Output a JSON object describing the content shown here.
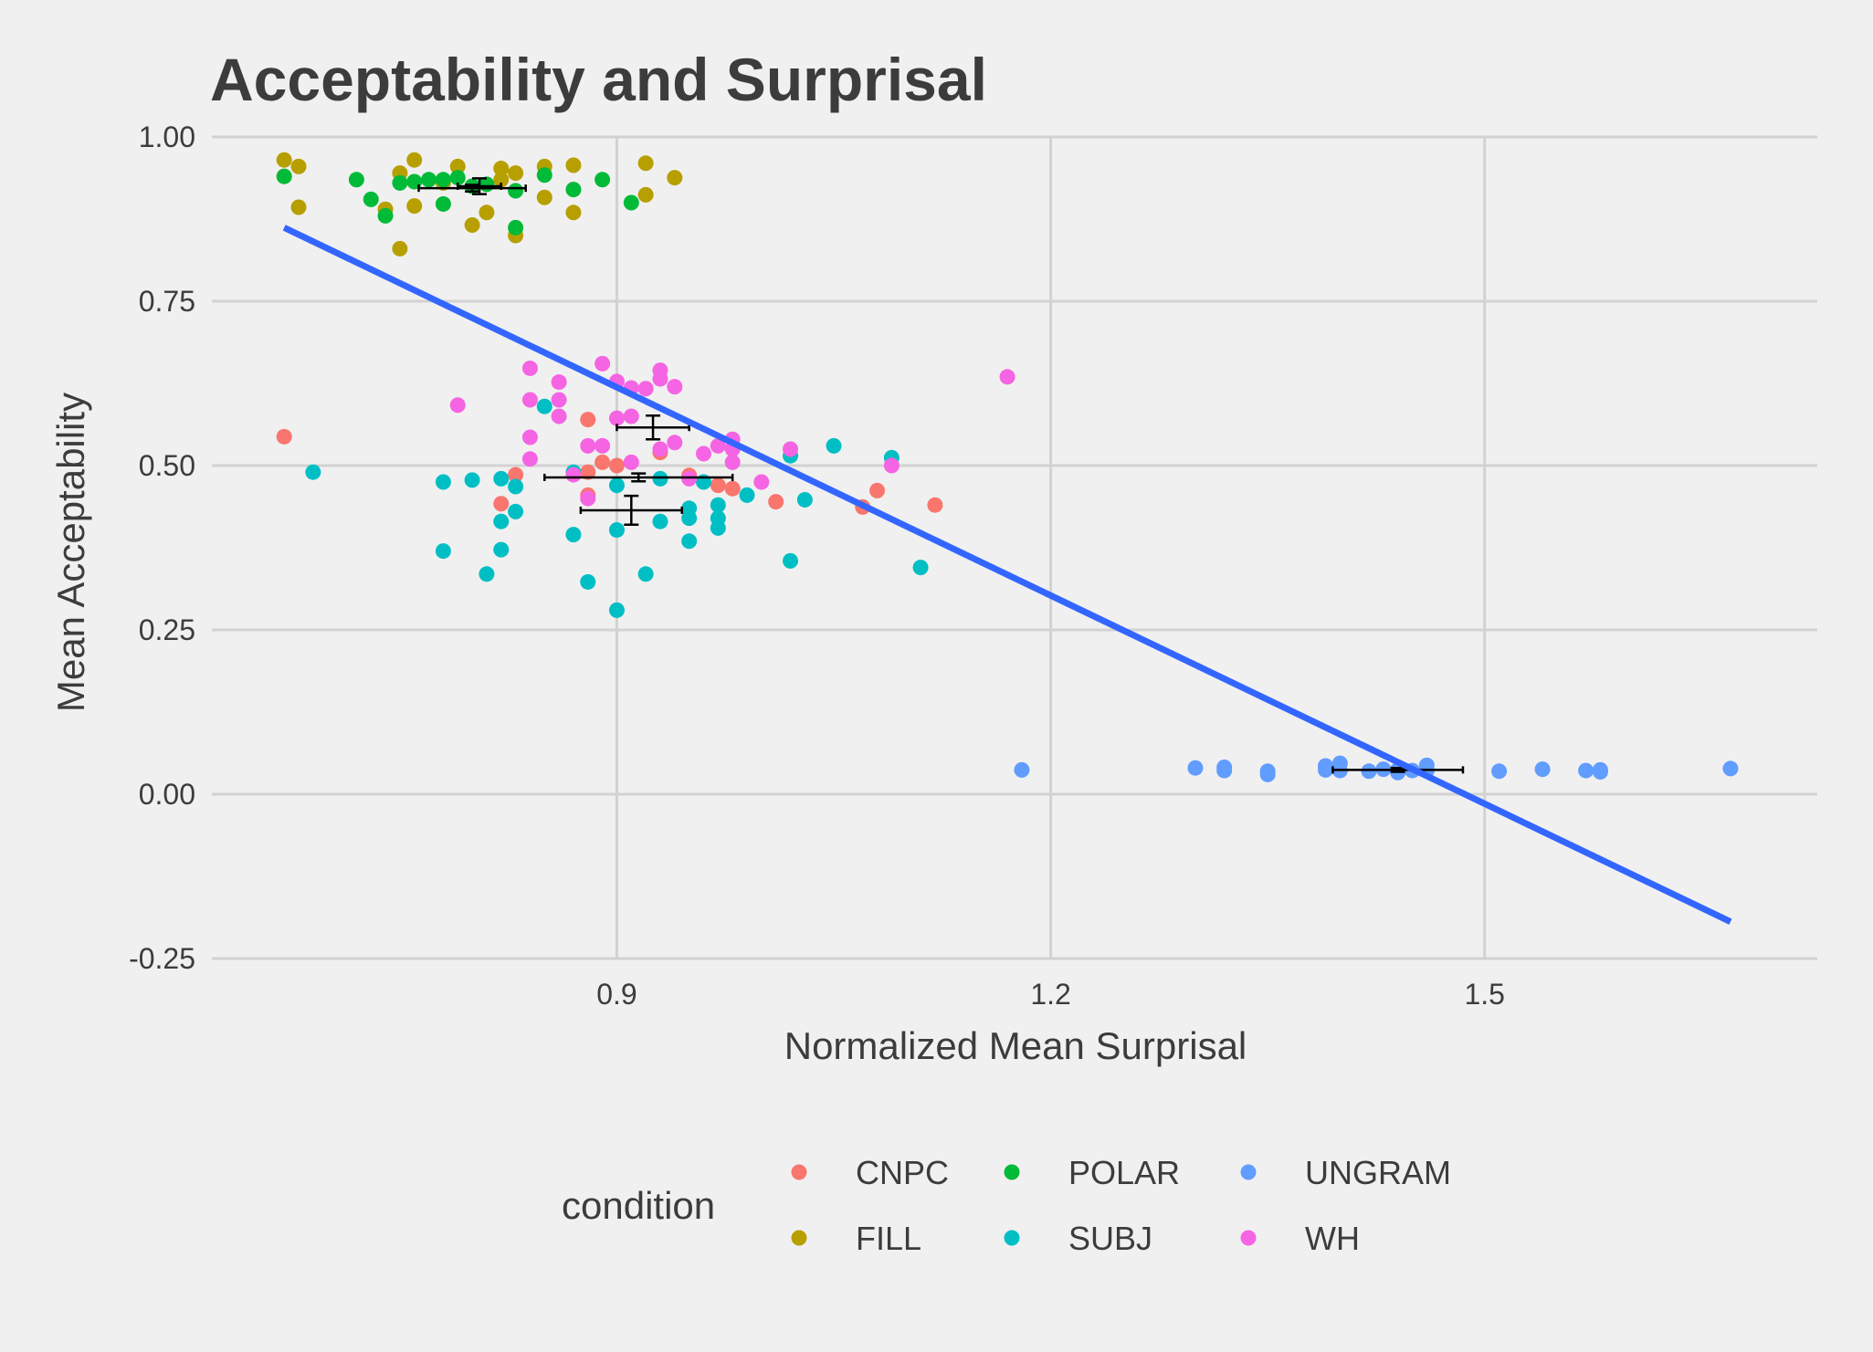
{
  "chart_data": {
    "type": "scatter",
    "title": "Acceptability and Surprisal",
    "xlabel": "Normalized Mean Surprisal",
    "ylabel": "Mean Acceptability",
    "xlim": [
      0.62,
      1.73
    ],
    "ylim": [
      -0.25,
      1.0
    ],
    "x_ticks": [
      0.9,
      1.2,
      1.5
    ],
    "x_tick_labels": [
      "0.9",
      "1.2",
      "1.5"
    ],
    "y_ticks": [
      -0.25,
      0,
      0.25,
      0.5,
      0.75,
      1.0
    ],
    "y_tick_labels": [
      "-0.25",
      "0.00",
      "0.25",
      "0.50",
      "0.75",
      "1.00"
    ],
    "grid": true,
    "legend": {
      "title": "condition",
      "position": "bottom"
    },
    "regression_line": {
      "color": "#3366ff",
      "x": [
        0.67,
        1.67
      ],
      "y": [
        0.862,
        -0.194
      ]
    },
    "series": [
      {
        "name": "CNPC",
        "color": "#f8766d",
        "points": [
          [
            0.67,
            0.544
          ],
          [
            0.82,
            0.442
          ],
          [
            0.83,
            0.486
          ],
          [
            0.88,
            0.57
          ],
          [
            0.88,
            0.455
          ],
          [
            0.88,
            0.49
          ],
          [
            0.89,
            0.505
          ],
          [
            0.9,
            0.5
          ],
          [
            0.93,
            0.52
          ],
          [
            0.95,
            0.485
          ],
          [
            0.97,
            0.47
          ],
          [
            0.98,
            0.465
          ],
          [
            1.01,
            0.445
          ],
          [
            1.07,
            0.437
          ],
          [
            1.08,
            0.462
          ],
          [
            1.12,
            0.44
          ]
        ],
        "mean": {
          "x": 0.915,
          "y": 0.482,
          "x_err": 0.065,
          "y_err": 0.006
        }
      },
      {
        "name": "FILL",
        "color": "#b79f00",
        "points": [
          [
            0.67,
            0.965
          ],
          [
            0.68,
            0.955
          ],
          [
            0.68,
            0.893
          ],
          [
            0.67,
            0.94
          ],
          [
            0.74,
            0.89
          ],
          [
            0.75,
            0.83
          ],
          [
            0.75,
            0.945
          ],
          [
            0.76,
            0.895
          ],
          [
            0.76,
            0.965
          ],
          [
            0.78,
            0.93
          ],
          [
            0.79,
            0.955
          ],
          [
            0.8,
            0.866
          ],
          [
            0.81,
            0.885
          ],
          [
            0.82,
            0.935
          ],
          [
            0.82,
            0.952
          ],
          [
            0.83,
            0.945
          ],
          [
            0.83,
            0.85
          ],
          [
            0.85,
            0.908
          ],
          [
            0.85,
            0.955
          ],
          [
            0.87,
            0.957
          ],
          [
            0.87,
            0.885
          ],
          [
            0.92,
            0.96
          ],
          [
            0.92,
            0.912
          ],
          [
            0.94,
            0.938
          ]
        ],
        "mean": {
          "x": 0.8,
          "y": 0.922,
          "x_err": 0.037,
          "y_err": 0.005
        }
      },
      {
        "name": "POLAR",
        "color": "#00ba38",
        "points": [
          [
            0.67,
            0.94
          ],
          [
            0.72,
            0.935
          ],
          [
            0.73,
            0.905
          ],
          [
            0.74,
            0.88
          ],
          [
            0.75,
            0.93
          ],
          [
            0.76,
            0.932
          ],
          [
            0.77,
            0.935
          ],
          [
            0.78,
            0.935
          ],
          [
            0.78,
            0.898
          ],
          [
            0.79,
            0.938
          ],
          [
            0.8,
            0.925
          ],
          [
            0.81,
            0.928
          ],
          [
            0.83,
            0.918
          ],
          [
            0.83,
            0.862
          ],
          [
            0.85,
            0.942
          ],
          [
            0.87,
            0.92
          ],
          [
            0.89,
            0.935
          ],
          [
            0.91,
            0.9
          ]
        ],
        "mean": {
          "x": 0.805,
          "y": 0.925,
          "x_err": 0.015,
          "y_err": 0.012
        }
      },
      {
        "name": "SUBJ",
        "color": "#00bfc4",
        "points": [
          [
            0.69,
            0.49
          ],
          [
            0.78,
            0.37
          ],
          [
            0.78,
            0.475
          ],
          [
            0.8,
            0.478
          ],
          [
            0.81,
            0.335
          ],
          [
            0.82,
            0.372
          ],
          [
            0.82,
            0.415
          ],
          [
            0.82,
            0.48
          ],
          [
            0.83,
            0.43
          ],
          [
            0.83,
            0.468
          ],
          [
            0.85,
            0.59
          ],
          [
            0.87,
            0.395
          ],
          [
            0.87,
            0.49
          ],
          [
            0.88,
            0.323
          ],
          [
            0.9,
            0.402
          ],
          [
            0.9,
            0.47
          ],
          [
            0.9,
            0.28
          ],
          [
            0.92,
            0.335
          ],
          [
            0.93,
            0.48
          ],
          [
            0.93,
            0.415
          ],
          [
            0.95,
            0.385
          ],
          [
            0.95,
            0.42
          ],
          [
            0.95,
            0.435
          ],
          [
            0.96,
            0.475
          ],
          [
            0.97,
            0.405
          ],
          [
            0.97,
            0.44
          ],
          [
            0.97,
            0.42
          ],
          [
            0.99,
            0.455
          ],
          [
            1.02,
            0.355
          ],
          [
            1.02,
            0.515
          ],
          [
            1.03,
            0.448
          ],
          [
            1.05,
            0.53
          ],
          [
            1.09,
            0.512
          ],
          [
            1.11,
            0.345
          ]
        ],
        "mean": {
          "x": 0.91,
          "y": 0.432,
          "x_err": 0.035,
          "y_err": 0.022
        }
      },
      {
        "name": "UNGRAM",
        "color": "#619cff",
        "points": [
          [
            1.18,
            0.037
          ],
          [
            1.3,
            0.04
          ],
          [
            1.32,
            0.041
          ],
          [
            1.32,
            0.036
          ],
          [
            1.35,
            0.035
          ],
          [
            1.35,
            0.03
          ],
          [
            1.39,
            0.043
          ],
          [
            1.39,
            0.037
          ],
          [
            1.4,
            0.047
          ],
          [
            1.4,
            0.036
          ],
          [
            1.42,
            0.035
          ],
          [
            1.43,
            0.038
          ],
          [
            1.44,
            0.037
          ],
          [
            1.44,
            0.033
          ],
          [
            1.45,
            0.036
          ],
          [
            1.46,
            0.044
          ],
          [
            1.46,
            0.036
          ],
          [
            1.51,
            0.035
          ],
          [
            1.54,
            0.038
          ],
          [
            1.57,
            0.036
          ],
          [
            1.58,
            0.037
          ],
          [
            1.58,
            0.034
          ],
          [
            1.67,
            0.039
          ]
        ],
        "mean": {
          "x": 1.44,
          "y": 0.037,
          "x_err": 0.045,
          "y_err": 0.003
        }
      },
      {
        "name": "WH",
        "color": "#f564e3",
        "points": [
          [
            0.79,
            0.592
          ],
          [
            0.84,
            0.648
          ],
          [
            0.84,
            0.6
          ],
          [
            0.84,
            0.543
          ],
          [
            0.84,
            0.51
          ],
          [
            0.86,
            0.627
          ],
          [
            0.86,
            0.575
          ],
          [
            0.86,
            0.6
          ],
          [
            0.87,
            0.486
          ],
          [
            0.88,
            0.45
          ],
          [
            0.88,
            0.53
          ],
          [
            0.89,
            0.655
          ],
          [
            0.89,
            0.53
          ],
          [
            0.9,
            0.628
          ],
          [
            0.9,
            0.572
          ],
          [
            0.91,
            0.575
          ],
          [
            0.91,
            0.618
          ],
          [
            0.91,
            0.505
          ],
          [
            0.92,
            0.617
          ],
          [
            0.93,
            0.645
          ],
          [
            0.93,
            0.632
          ],
          [
            0.93,
            0.525
          ],
          [
            0.94,
            0.62
          ],
          [
            0.94,
            0.535
          ],
          [
            0.95,
            0.48
          ],
          [
            0.96,
            0.518
          ],
          [
            0.97,
            0.53
          ],
          [
            0.98,
            0.54
          ],
          [
            0.98,
            0.505
          ],
          [
            0.98,
            0.525
          ],
          [
            1.0,
            0.475
          ],
          [
            1.02,
            0.525
          ],
          [
            1.09,
            0.5
          ],
          [
            1.17,
            0.635
          ]
        ],
        "mean": {
          "x": 0.925,
          "y": 0.558,
          "x_err": 0.025,
          "y_err": 0.018
        }
      }
    ]
  }
}
